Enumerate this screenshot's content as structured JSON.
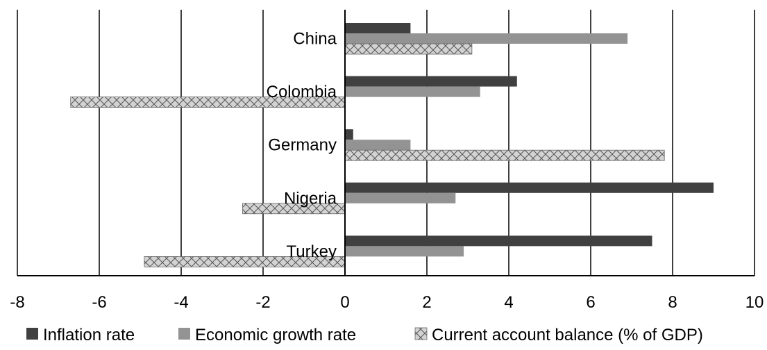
{
  "chart_data": {
    "type": "bar",
    "orientation": "horizontal",
    "categories": [
      "China",
      "Colombia",
      "Germany",
      "Nigeria",
      "Turkey"
    ],
    "series": [
      {
        "name": "Inflation rate",
        "values": [
          1.6,
          4.2,
          0.2,
          9.0,
          7.5
        ],
        "color": "#404040",
        "pattern": "solid"
      },
      {
        "name": "Economic growth rate",
        "values": [
          6.9,
          3.3,
          1.6,
          2.7,
          2.9
        ],
        "color": "#939393",
        "pattern": "solid"
      },
      {
        "name": "Current account balance (% of GDP)",
        "values": [
          3.1,
          -6.7,
          7.8,
          -2.5,
          -4.9
        ],
        "color": "#d3d3d3",
        "pattern": "crosshatch"
      }
    ],
    "xlim": [
      -8,
      10
    ],
    "xticks": [
      "-8",
      "-6",
      "-4",
      "-2",
      "0",
      "2",
      "4",
      "6",
      "8",
      "10"
    ],
    "grid": "vertical",
    "legend_position": "bottom"
  }
}
